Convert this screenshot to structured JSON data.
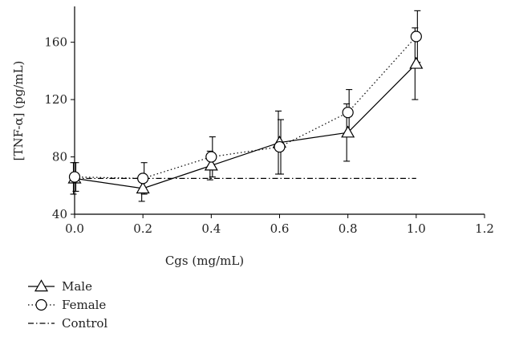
{
  "chart_data": {
    "type": "line",
    "xlabel": "Cgs (mg/mL)",
    "ylabel": "[TNF-α] (pg/mL)",
    "xlim": [
      0,
      1.2
    ],
    "ylim": [
      40,
      185
    ],
    "xticks": [
      0.0,
      0.2,
      0.4,
      0.6,
      0.8,
      1.0,
      1.2
    ],
    "xtick_labels": [
      "0.0",
      "0.2",
      "0.4",
      "0.6",
      "0.8",
      "1.0",
      "1.2"
    ],
    "yticks": [
      40,
      80,
      120,
      160
    ],
    "ytick_labels": [
      "40",
      "80",
      "120",
      "160"
    ],
    "grid": false,
    "legend_position": "bottom-left",
    "series": [
      {
        "name": "Male",
        "line_style": "solid",
        "marker": "triangle",
        "color": "#000000",
        "x": [
          0.0,
          0.2,
          0.4,
          0.6,
          0.8,
          1.0
        ],
        "y": [
          65,
          58,
          74,
          90,
          97,
          145
        ],
        "err": [
          11,
          9,
          10,
          22,
          20,
          25
        ]
      },
      {
        "name": "Female",
        "line_style": "dotted",
        "marker": "circle",
        "color": "#000000",
        "x": [
          0.0,
          0.2,
          0.4,
          0.6,
          0.8,
          1.0
        ],
        "y": [
          66,
          65,
          80,
          87,
          111,
          164
        ],
        "err": [
          10,
          11,
          14,
          19,
          16,
          18
        ]
      },
      {
        "name": "Control",
        "line_style": "dashdot",
        "marker": "none",
        "color": "#000000",
        "x": [
          0.0,
          1.0
        ],
        "y": [
          65,
          65
        ]
      }
    ]
  }
}
